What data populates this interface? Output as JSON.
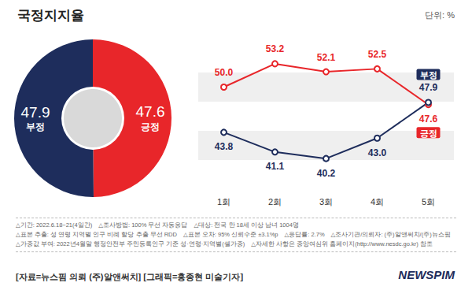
{
  "title": "국정지지율",
  "unit": "단위: %",
  "chart_data": [
    {
      "type": "pie",
      "categories": [
        "긍정",
        "부정"
      ],
      "values": [
        47.6,
        47.9
      ],
      "value_labels": [
        "47.6",
        "47.9"
      ],
      "colors": [
        "#e8262a",
        "#1e2d5c"
      ],
      "data_labels": true
    },
    {
      "type": "line",
      "categories": [
        "1회",
        "2회",
        "3회",
        "4회",
        "5회"
      ],
      "series": [
        {
          "name": "긍정",
          "color": "#e8262a",
          "values": [
            50.0,
            53.2,
            52.1,
            52.5,
            47.6
          ],
          "value_labels": [
            "50.0",
            "53.2",
            "52.1",
            "52.5",
            "47.6"
          ]
        },
        {
          "name": "부정",
          "color": "#1e2d5c",
          "values": [
            43.8,
            41.1,
            40.2,
            43.0,
            47.9
          ],
          "value_labels": [
            "43.8",
            "41.1",
            "40.2",
            "43.0",
            "47.9"
          ]
        }
      ],
      "ylim": [
        36,
        56
      ],
      "yticks": [
        36,
        40,
        44,
        48,
        52,
        56
      ],
      "grid": true,
      "tick_labels": "x",
      "data_labels": true,
      "marker": "circle"
    }
  ],
  "notes": [
    "△기간: 2022.6.18~21(4일간)",
    "△조사방법: 100% 무선 자동응답",
    "△대상: 전국 만 18세 이상 남녀 1004명",
    "△표본 추출: 성 연령 지역별 인구 비례 할당 추출 무선 RDD",
    "△표본 오차: 95% 신뢰수준 ±3.1%p",
    "△응답률: 2.7%",
    "△조사기관/의뢰자: (주)알앤써치/(주)뉴스핌",
    "△가중값 부여: 2022년4월말 행정안전부 주민등록인구 기준 성·연령·지역별(셀가중)",
    "△자세한 사항은 중앙여심위 홈페이지(http://www.nesdc.go.kr) 참조"
  ],
  "source": "[자료=뉴스핌 의뢰 (주)알앤써치] [그래픽=홍종현 미술기자]",
  "logo": "NEWSPIM"
}
